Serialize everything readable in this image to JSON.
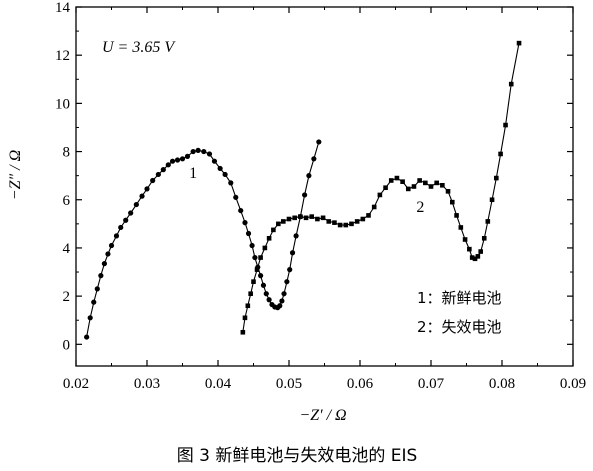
{
  "chart_data": {
    "type": "scatter",
    "caption": "图 3   新鲜电池与失效电池的 EIS",
    "xlabel": "−Z′ / Ω",
    "ylabel": "−Z″ / Ω",
    "xlim": [
      0.02,
      0.09
    ],
    "ylim": [
      -0.9,
      14
    ],
    "xticks": [
      0.02,
      0.03,
      0.04,
      0.05,
      0.06,
      0.07,
      0.08,
      0.09
    ],
    "yticks": [
      0,
      2,
      4,
      6,
      8,
      10,
      12,
      14
    ],
    "xtick_labels": [
      "0.02",
      "0.03",
      "0.04",
      "0.05",
      "0.06",
      "0.07",
      "0.08",
      "0.09"
    ],
    "ytick_labels": [
      "0",
      "2",
      "4",
      "6",
      "8",
      "10",
      "12",
      "14"
    ],
    "grid": false,
    "annotation": "U = 3.65 V",
    "curve_labels": [
      {
        "text": "1",
        "x": 0.0365,
        "y": 6.9
      },
      {
        "text": "2",
        "x": 0.0685,
        "y": 5.5
      }
    ],
    "legend_entries": [
      "1：新鲜电池",
      "2：失效电池"
    ],
    "series": [
      {
        "name": "1",
        "marker": "circle",
        "points": [
          [
            0.0215,
            0.3
          ],
          [
            0.022,
            1.1
          ],
          [
            0.0225,
            1.75
          ],
          [
            0.023,
            2.3
          ],
          [
            0.0235,
            2.85
          ],
          [
            0.024,
            3.35
          ],
          [
            0.0245,
            3.75
          ],
          [
            0.025,
            4.1
          ],
          [
            0.0257,
            4.5
          ],
          [
            0.0263,
            4.85
          ],
          [
            0.027,
            5.15
          ],
          [
            0.0277,
            5.45
          ],
          [
            0.0285,
            5.8
          ],
          [
            0.0293,
            6.15
          ],
          [
            0.03,
            6.45
          ],
          [
            0.0308,
            6.8
          ],
          [
            0.0316,
            7.05
          ],
          [
            0.0323,
            7.25
          ],
          [
            0.033,
            7.45
          ],
          [
            0.0336,
            7.6
          ],
          [
            0.0343,
            7.65
          ],
          [
            0.035,
            7.7
          ],
          [
            0.0357,
            7.8
          ],
          [
            0.0365,
            8.0
          ],
          [
            0.0372,
            8.05
          ],
          [
            0.038,
            8.0
          ],
          [
            0.0388,
            7.9
          ],
          [
            0.0395,
            7.6
          ],
          [
            0.0403,
            7.3
          ],
          [
            0.041,
            7.05
          ],
          [
            0.0418,
            6.7
          ],
          [
            0.0425,
            6.1
          ],
          [
            0.0432,
            5.55
          ],
          [
            0.0438,
            5.05
          ],
          [
            0.0443,
            4.6
          ],
          [
            0.0448,
            4.1
          ],
          [
            0.0452,
            3.6
          ],
          [
            0.0456,
            3.2
          ],
          [
            0.046,
            2.85
          ],
          [
            0.0464,
            2.45
          ],
          [
            0.0468,
            2.1
          ],
          [
            0.0472,
            1.85
          ],
          [
            0.0476,
            1.65
          ],
          [
            0.048,
            1.55
          ],
          [
            0.0484,
            1.52
          ],
          [
            0.0487,
            1.6
          ],
          [
            0.049,
            1.8
          ],
          [
            0.0493,
            2.1
          ],
          [
            0.0497,
            2.6
          ],
          [
            0.0501,
            3.1
          ],
          [
            0.0505,
            3.8
          ],
          [
            0.051,
            4.5
          ],
          [
            0.0516,
            5.3
          ],
          [
            0.0522,
            6.2
          ],
          [
            0.0528,
            7.0
          ],
          [
            0.0535,
            7.7
          ],
          [
            0.0542,
            8.4
          ]
        ]
      },
      {
        "name": "2",
        "marker": "square",
        "points": [
          [
            0.0435,
            0.5
          ],
          [
            0.0438,
            1.1
          ],
          [
            0.0442,
            1.6
          ],
          [
            0.0446,
            2.1
          ],
          [
            0.045,
            2.6
          ],
          [
            0.0455,
            3.1
          ],
          [
            0.046,
            3.6
          ],
          [
            0.0466,
            4.0
          ],
          [
            0.0472,
            4.4
          ],
          [
            0.0478,
            4.75
          ],
          [
            0.0485,
            5.0
          ],
          [
            0.0492,
            5.1
          ],
          [
            0.05,
            5.2
          ],
          [
            0.0508,
            5.25
          ],
          [
            0.0516,
            5.3
          ],
          [
            0.0524,
            5.25
          ],
          [
            0.0532,
            5.3
          ],
          [
            0.054,
            5.2
          ],
          [
            0.0548,
            5.25
          ],
          [
            0.0556,
            5.1
          ],
          [
            0.0564,
            5.05
          ],
          [
            0.0572,
            4.95
          ],
          [
            0.058,
            4.95
          ],
          [
            0.0588,
            5.0
          ],
          [
            0.0596,
            5.1
          ],
          [
            0.0604,
            5.2
          ],
          [
            0.0612,
            5.35
          ],
          [
            0.062,
            5.7
          ],
          [
            0.0628,
            6.2
          ],
          [
            0.0636,
            6.5
          ],
          [
            0.0644,
            6.8
          ],
          [
            0.0652,
            6.9
          ],
          [
            0.066,
            6.75
          ],
          [
            0.0668,
            6.45
          ],
          [
            0.0676,
            6.55
          ],
          [
            0.0684,
            6.8
          ],
          [
            0.0692,
            6.7
          ],
          [
            0.07,
            6.55
          ],
          [
            0.0708,
            6.7
          ],
          [
            0.0716,
            6.6
          ],
          [
            0.0724,
            6.35
          ],
          [
            0.073,
            5.9
          ],
          [
            0.0736,
            5.35
          ],
          [
            0.0742,
            4.85
          ],
          [
            0.0748,
            4.35
          ],
          [
            0.0754,
            3.95
          ],
          [
            0.0758,
            3.6
          ],
          [
            0.0762,
            3.55
          ],
          [
            0.0766,
            3.65
          ],
          [
            0.077,
            3.85
          ],
          [
            0.0775,
            4.4
          ],
          [
            0.078,
            5.1
          ],
          [
            0.0786,
            6.0
          ],
          [
            0.0792,
            6.9
          ],
          [
            0.0798,
            7.9
          ],
          [
            0.0805,
            9.1
          ],
          [
            0.0813,
            10.8
          ],
          [
            0.0824,
            12.5
          ]
        ]
      }
    ]
  }
}
